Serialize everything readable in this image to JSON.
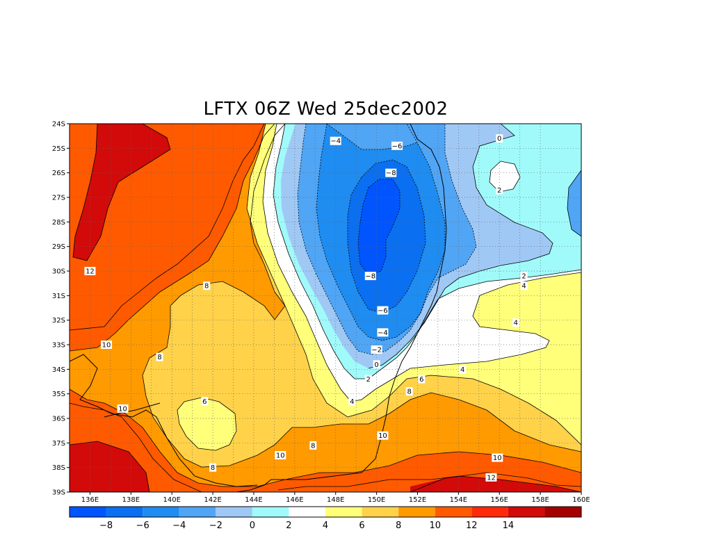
{
  "title": "LFTX 06Z Wed 25dec2002",
  "map": {
    "lat_ticks": [
      "24S",
      "25S",
      "26S",
      "27S",
      "28S",
      "29S",
      "30S",
      "31S",
      "32S",
      "33S",
      "34S",
      "35S",
      "36S",
      "37S",
      "38S",
      "39S"
    ],
    "lon_ticks": [
      "136E",
      "138E",
      "140E",
      "142E",
      "144E",
      "146E",
      "148E",
      "150E",
      "152E",
      "154E",
      "156E",
      "158E",
      "160E"
    ],
    "contour_labels": [
      {
        "text": "-4",
        "lon": 148.0,
        "lat": -24.7
      },
      {
        "text": "-6",
        "lon": 151.0,
        "lat": -24.9
      },
      {
        "text": "-8",
        "lon": 150.7,
        "lat": -26.0
      },
      {
        "text": "-8",
        "lon": 149.7,
        "lat": -30.2
      },
      {
        "text": "-6",
        "lon": 150.3,
        "lat": -31.6
      },
      {
        "text": "-4",
        "lon": 150.3,
        "lat": -32.5
      },
      {
        "text": "-2",
        "lon": 150.0,
        "lat": -33.2
      },
      {
        "text": "0",
        "lon": 150.0,
        "lat": -33.8
      },
      {
        "text": "2",
        "lon": 149.6,
        "lat": -34.4
      },
      {
        "text": "4",
        "lon": 148.8,
        "lat": -35.3
      },
      {
        "text": "6",
        "lon": 152.2,
        "lat": -34.4
      },
      {
        "text": "8",
        "lon": 151.6,
        "lat": -34.9
      },
      {
        "text": "10",
        "lon": 150.3,
        "lat": -36.7
      },
      {
        "text": "8",
        "lon": 146.9,
        "lat": -37.1
      },
      {
        "text": "10",
        "lon": 145.3,
        "lat": -37.5
      },
      {
        "text": "8",
        "lon": 142.0,
        "lat": -38.0
      },
      {
        "text": "6",
        "lon": 141.6,
        "lat": -35.3
      },
      {
        "text": "8",
        "lon": 139.4,
        "lat": -33.5
      },
      {
        "text": "10",
        "lon": 136.8,
        "lat": -33.0
      },
      {
        "text": "10",
        "lon": 137.6,
        "lat": -35.6
      },
      {
        "text": "12",
        "lon": 136.0,
        "lat": -30.0
      },
      {
        "text": "8",
        "lon": 141.7,
        "lat": -30.6
      },
      {
        "text": "0",
        "lon": 156.0,
        "lat": -24.6
      },
      {
        "text": "2",
        "lon": 156.0,
        "lat": -26.7
      },
      {
        "text": "2",
        "lon": 157.2,
        "lat": -30.2
      },
      {
        "text": "4",
        "lon": 157.2,
        "lat": -30.6
      },
      {
        "text": "4",
        "lon": 156.8,
        "lat": -32.1
      },
      {
        "text": "4",
        "lon": 154.2,
        "lat": -34.0
      },
      {
        "text": "10",
        "lon": 155.9,
        "lat": -37.6
      },
      {
        "text": "12",
        "lon": 155.6,
        "lat": -38.4
      }
    ]
  },
  "colorbar": {
    "labels": [
      "-8",
      "-6",
      "-4",
      "-2",
      "0",
      "2",
      "4",
      "6",
      "8",
      "10",
      "12",
      "14"
    ],
    "colors": [
      "#0055ff",
      "#0a6ff0",
      "#1e8cf0",
      "#50a5f5",
      "#a0c8f5",
      "#a0fafa",
      "#ffffff",
      "#ffff7a",
      "#ffd24a",
      "#ff9a00",
      "#ff5a00",
      "#ff2a0a",
      "#d20a0a",
      "#a50000"
    ]
  }
}
